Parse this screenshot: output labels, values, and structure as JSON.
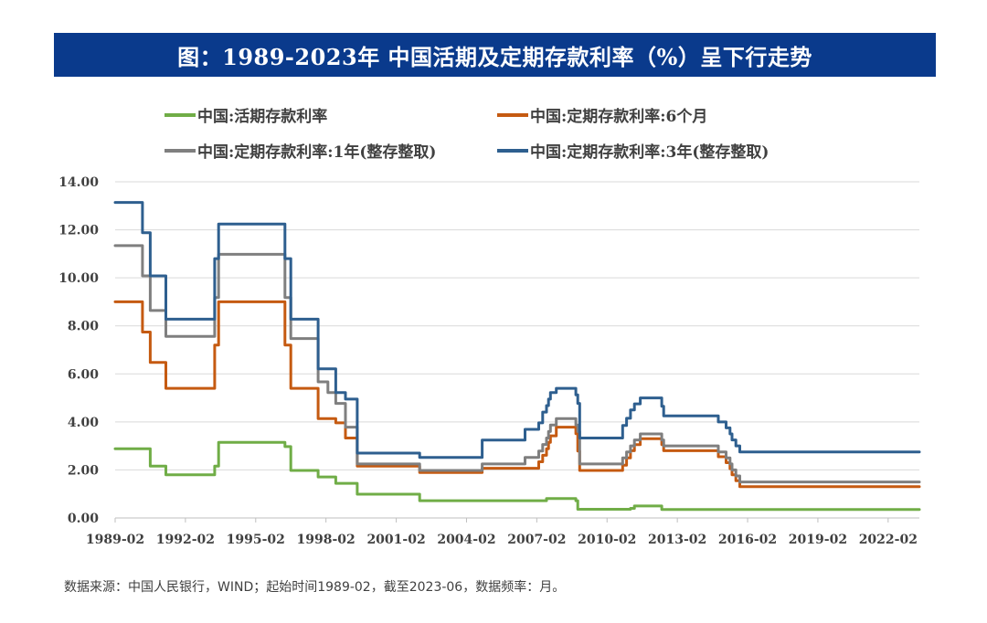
{
  "title": "图：1989-2023年 中国活期及定期存款利率（%）呈下行走势",
  "source_note": "数据来源：中国人民银行，WIND；起始时间1989-02，截至2023-06，数据频率：月。",
  "colors": {
    "title_bg": "#0a3a8c",
    "demand": "#70ad47",
    "six_month": "#c55a11",
    "one_year": "#7f7f7f",
    "three_year": "#2e5f8f",
    "grid": "#d9d9d9",
    "axis_text": "#404040"
  },
  "chart_data": {
    "type": "line",
    "title": "图：1989-2023年 中国活期及定期存款利率（%）呈下行走势",
    "xlabel": "",
    "ylabel": "",
    "x_ticks": [
      "1989-02",
      "1992-02",
      "1995-02",
      "1998-02",
      "2001-02",
      "2004-02",
      "2007-02",
      "2010-02",
      "2013-02",
      "2016-02",
      "2019-02",
      "2022-02"
    ],
    "y_ticks": [
      "0.00",
      "2.00",
      "4.00",
      "6.00",
      "8.00",
      "10.00",
      "12.00",
      "14.00"
    ],
    "ylim": [
      0,
      14
    ],
    "xlim": [
      "1989-02",
      "2023-06"
    ],
    "grid": "horizontal",
    "legend_position": "top",
    "series": [
      {
        "name": "中国:活期存款利率",
        "color_key": "demand",
        "steps": [
          [
            "1989-02",
            2.88
          ],
          [
            "1990-08",
            2.16
          ],
          [
            "1991-04",
            1.8
          ],
          [
            "1993-05",
            2.16
          ],
          [
            "1993-07",
            3.15
          ],
          [
            "1996-05",
            2.97
          ],
          [
            "1996-08",
            1.98
          ],
          [
            "1997-10",
            1.71
          ],
          [
            "1998-07",
            1.44
          ],
          [
            "1999-06",
            0.99
          ],
          [
            "2002-02",
            0.72
          ],
          [
            "2007-07",
            0.81
          ],
          [
            "2008-10",
            0.72
          ],
          [
            "2008-11",
            0.36
          ],
          [
            "2011-02",
            0.4
          ],
          [
            "2011-04",
            0.5
          ],
          [
            "2012-06",
            0.35
          ],
          [
            "2023-06",
            0.35
          ]
        ]
      },
      {
        "name": "中国:定期存款利率:6个月",
        "color_key": "six_month",
        "steps": [
          [
            "1989-02",
            9.0
          ],
          [
            "1990-04",
            7.74
          ],
          [
            "1990-08",
            6.48
          ],
          [
            "1991-04",
            5.4
          ],
          [
            "1993-05",
            7.2
          ],
          [
            "1993-07",
            9.0
          ],
          [
            "1996-05",
            7.2
          ],
          [
            "1996-08",
            5.4
          ],
          [
            "1997-10",
            4.14
          ],
          [
            "1998-03",
            4.14
          ],
          [
            "1998-07",
            3.96
          ],
          [
            "1998-12",
            3.33
          ],
          [
            "1999-06",
            2.16
          ],
          [
            "2002-02",
            1.89
          ],
          [
            "2004-10",
            2.07
          ],
          [
            "2006-08",
            2.07
          ],
          [
            "2007-03",
            2.34
          ],
          [
            "2007-05",
            2.61
          ],
          [
            "2007-07",
            2.88
          ],
          [
            "2007-08",
            3.15
          ],
          [
            "2007-09",
            3.42
          ],
          [
            "2007-12",
            3.78
          ],
          [
            "2008-10",
            3.51
          ],
          [
            "2008-11",
            2.79
          ],
          [
            "2008-12",
            1.98
          ],
          [
            "2010-10",
            2.2
          ],
          [
            "2010-12",
            2.5
          ],
          [
            "2011-02",
            2.8
          ],
          [
            "2011-04",
            3.05
          ],
          [
            "2011-07",
            3.3
          ],
          [
            "2012-06",
            3.05
          ],
          [
            "2012-07",
            2.8
          ],
          [
            "2014-11",
            2.55
          ],
          [
            "2015-03",
            2.3
          ],
          [
            "2015-05",
            2.05
          ],
          [
            "2015-06",
            1.8
          ],
          [
            "2015-08",
            1.55
          ],
          [
            "2015-10",
            1.3
          ],
          [
            "2023-06",
            1.3
          ]
        ]
      },
      {
        "name": "中国:定期存款利率:1年(整存整取)",
        "color_key": "one_year",
        "steps": [
          [
            "1989-02",
            11.34
          ],
          [
            "1990-04",
            10.08
          ],
          [
            "1990-08",
            8.64
          ],
          [
            "1991-04",
            7.56
          ],
          [
            "1993-05",
            9.18
          ],
          [
            "1993-07",
            10.98
          ],
          [
            "1996-05",
            9.18
          ],
          [
            "1996-08",
            7.47
          ],
          [
            "1997-10",
            5.67
          ],
          [
            "1998-03",
            5.22
          ],
          [
            "1998-07",
            4.77
          ],
          [
            "1998-12",
            3.78
          ],
          [
            "1999-06",
            2.25
          ],
          [
            "2002-02",
            1.98
          ],
          [
            "2004-10",
            2.25
          ],
          [
            "2006-08",
            2.52
          ],
          [
            "2007-03",
            2.79
          ],
          [
            "2007-05",
            3.06
          ],
          [
            "2007-07",
            3.33
          ],
          [
            "2007-08",
            3.6
          ],
          [
            "2007-09",
            3.87
          ],
          [
            "2007-12",
            4.14
          ],
          [
            "2008-10",
            3.87
          ],
          [
            "2008-11",
            3.6
          ],
          [
            "2008-12",
            2.25
          ],
          [
            "2010-10",
            2.5
          ],
          [
            "2010-12",
            2.75
          ],
          [
            "2011-02",
            3.0
          ],
          [
            "2011-04",
            3.25
          ],
          [
            "2011-07",
            3.5
          ],
          [
            "2012-06",
            3.25
          ],
          [
            "2012-07",
            3.0
          ],
          [
            "2014-11",
            2.75
          ],
          [
            "2015-03",
            2.5
          ],
          [
            "2015-05",
            2.25
          ],
          [
            "2015-06",
            2.0
          ],
          [
            "2015-08",
            1.75
          ],
          [
            "2015-10",
            1.5
          ],
          [
            "2023-06",
            1.5
          ]
        ]
      },
      {
        "name": "中国:定期存款利率:3年(整存整取)",
        "color_key": "three_year",
        "steps": [
          [
            "1989-02",
            13.14
          ],
          [
            "1990-04",
            11.88
          ],
          [
            "1990-08",
            10.08
          ],
          [
            "1991-04",
            8.28
          ],
          [
            "1993-05",
            10.8
          ],
          [
            "1993-07",
            12.24
          ],
          [
            "1996-05",
            10.8
          ],
          [
            "1996-08",
            8.28
          ],
          [
            "1997-10",
            6.21
          ],
          [
            "1998-03",
            6.21
          ],
          [
            "1998-07",
            5.22
          ],
          [
            "1998-12",
            4.95
          ],
          [
            "1999-06",
            2.7
          ],
          [
            "2002-02",
            2.52
          ],
          [
            "2004-10",
            3.24
          ],
          [
            "2006-08",
            3.69
          ],
          [
            "2007-03",
            3.96
          ],
          [
            "2007-05",
            4.41
          ],
          [
            "2007-07",
            4.68
          ],
          [
            "2007-08",
            4.95
          ],
          [
            "2007-09",
            5.22
          ],
          [
            "2007-12",
            5.4
          ],
          [
            "2008-10",
            5.13
          ],
          [
            "2008-11",
            4.77
          ],
          [
            "2008-12",
            3.33
          ],
          [
            "2010-10",
            3.85
          ],
          [
            "2010-12",
            4.15
          ],
          [
            "2011-02",
            4.5
          ],
          [
            "2011-04",
            4.75
          ],
          [
            "2011-07",
            5.0
          ],
          [
            "2012-06",
            4.65
          ],
          [
            "2012-07",
            4.25
          ],
          [
            "2014-11",
            4.0
          ],
          [
            "2015-03",
            3.75
          ],
          [
            "2015-05",
            3.5
          ],
          [
            "2015-06",
            3.25
          ],
          [
            "2015-08",
            3.0
          ],
          [
            "2015-10",
            2.75
          ],
          [
            "2023-06",
            2.75
          ]
        ]
      }
    ]
  }
}
